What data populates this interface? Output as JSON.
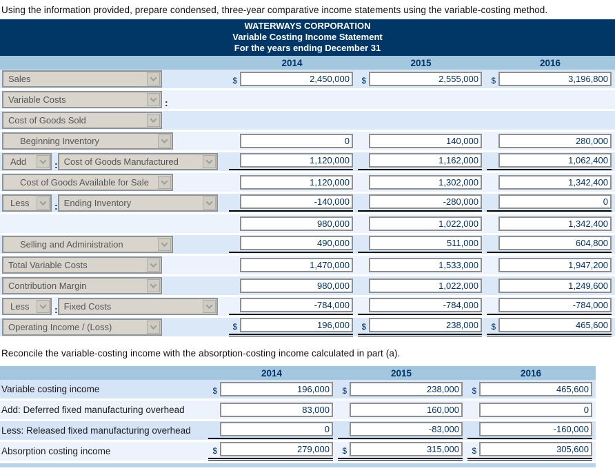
{
  "part_b_instruction": "Using the information provided, prepare condensed, three-year comparative income statements using the variable-costing method.",
  "part_c_instruction": "Reconcile the variable-costing income with the absorption-costing income calculated in part (a).",
  "colors": {
    "header_bg": "#003767",
    "year_band_bg": "#a4c7e0",
    "value_text": "#003366",
    "row_blue": "#dbe8f8",
    "row_pale": "#ecf3fc"
  },
  "statement": {
    "title_lines": [
      "WATERWAYS CORPORATION",
      "Variable Costing Income Statement",
      "For the years ending December 31"
    ],
    "years": [
      "2014",
      "2015",
      "2016"
    ],
    "rows": [
      {
        "selects": [
          {
            "label": "Sales"
          }
        ],
        "colon": false,
        "dollar": true,
        "values": [
          "2,450,000",
          "2,555,000",
          "3,196,800"
        ],
        "line": "none"
      },
      {
        "selects": [
          {
            "label": "Variable Costs"
          }
        ],
        "colon": true,
        "dollar": false,
        "values": null,
        "line": "none"
      },
      {
        "selects": [
          {
            "label": "Cost of Goods Sold"
          }
        ],
        "colon": false,
        "dollar": false,
        "values": null,
        "line": "none"
      },
      {
        "selects": [
          {
            "label": "Beginning Inventory",
            "indent": true
          }
        ],
        "colon": false,
        "dollar": false,
        "values": [
          "0",
          "140,000",
          "280,000"
        ],
        "line": "none"
      },
      {
        "selects": [
          {
            "label": "Add",
            "small": true
          },
          {
            "label": "Cost of Goods Manufactured"
          }
        ],
        "colon": true,
        "dollar": false,
        "values": [
          "1,120,000",
          "1,162,000",
          "1,062,400"
        ],
        "line": "single"
      },
      {
        "selects": [
          {
            "label": "Cost of Goods Available for Sale",
            "indent": true
          }
        ],
        "colon": false,
        "dollar": false,
        "values": [
          "1,120,000",
          "1,302,000",
          "1,342,400"
        ],
        "line": "none"
      },
      {
        "selects": [
          {
            "label": "Less",
            "small": true
          },
          {
            "label": "Ending Inventory"
          }
        ],
        "colon": true,
        "dollar": false,
        "values": [
          "-140,000",
          "-280,000",
          "0"
        ],
        "line": "single"
      },
      {
        "selects": [],
        "colon": false,
        "dollar": false,
        "values": [
          "980,000",
          "1,022,000",
          "1,342,400"
        ],
        "line": "none"
      },
      {
        "selects": [
          {
            "label": "Selling and Administration",
            "indent": true
          }
        ],
        "colon": false,
        "dollar": false,
        "values": [
          "490,000",
          "511,000",
          "604,800"
        ],
        "line": "single"
      },
      {
        "selects": [
          {
            "label": "Total Variable Costs"
          }
        ],
        "colon": false,
        "dollar": false,
        "values": [
          "1,470,000",
          "1,533,000",
          "1,947,200"
        ],
        "line": "none"
      },
      {
        "selects": [
          {
            "label": "Contribution Margin"
          }
        ],
        "colon": false,
        "dollar": false,
        "values": [
          "980,000",
          "1,022,000",
          "1,249,600"
        ],
        "line": "none"
      },
      {
        "selects": [
          {
            "label": "Less",
            "small": true
          },
          {
            "label": "Fixed Costs"
          }
        ],
        "colon": true,
        "dollar": false,
        "values": [
          "-784,000",
          "-784,000",
          "-784,000"
        ],
        "line": "single"
      },
      {
        "selects": [
          {
            "label": "Operating Income / (Loss)"
          }
        ],
        "colon": false,
        "dollar": true,
        "values": [
          "196,000",
          "238,000",
          "465,600"
        ],
        "line": "double"
      }
    ]
  },
  "reconciliation": {
    "years": [
      "2014",
      "2015",
      "2016"
    ],
    "rows": [
      {
        "label": "Variable costing income",
        "dollar": true,
        "values": [
          "196,000",
          "238,000",
          "465,600"
        ],
        "line": "none"
      },
      {
        "label": "Add: Deferred fixed manufacturing overhead",
        "dollar": false,
        "values": [
          "83,000",
          "160,000",
          "0"
        ],
        "line": "none"
      },
      {
        "label": "Less: Released fixed manufacturing overhead",
        "dollar": false,
        "values": [
          "0",
          "-83,000",
          "-160,000"
        ],
        "line": "single"
      },
      {
        "label": "Absorption costing income",
        "dollar": true,
        "values": [
          "279,000",
          "315,000",
          "305,600"
        ],
        "line": "double"
      }
    ]
  }
}
